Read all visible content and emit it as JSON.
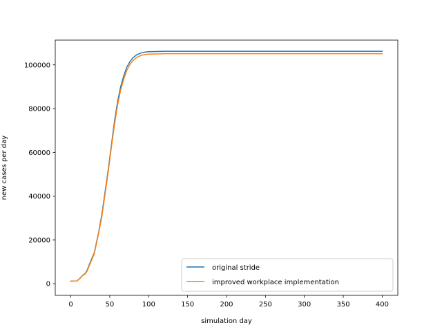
{
  "chart_data": {
    "type": "line",
    "title": "",
    "xlabel": "simulation day",
    "ylabel": "new cases per day",
    "xlim": [
      -20,
      420
    ],
    "ylim": [
      -5300,
      111300
    ],
    "xticks": [
      0,
      50,
      100,
      150,
      200,
      250,
      300,
      350,
      400
    ],
    "yticks": [
      0,
      20000,
      40000,
      60000,
      80000,
      100000
    ],
    "grid": false,
    "legend_position": "lower right",
    "series": [
      {
        "name": "original stride",
        "color": "#1f77b4",
        "x": [
          0,
          8,
          12,
          15,
          18,
          21,
          24,
          27,
          30,
          33,
          36,
          40,
          44,
          48,
          52,
          56,
          60,
          64,
          68,
          72,
          76,
          80,
          85,
          90,
          95,
          100,
          110,
          120,
          150,
          200,
          250,
          300,
          350,
          400
        ],
        "y": [
          1200,
          1300,
          2600,
          3800,
          4500,
          6200,
          9000,
          11500,
          14000,
          19000,
          24000,
          32000,
          42000,
          52000,
          63000,
          74000,
          83000,
          90000,
          95000,
          99000,
          101500,
          103300,
          104700,
          105400,
          105800,
          106000,
          106100,
          106200,
          106200,
          106200,
          106200,
          106200,
          106200,
          106200
        ]
      },
      {
        "name": "improved workplace implementation",
        "color": "#ff7f0e",
        "x": [
          0,
          8,
          12,
          15,
          18,
          21,
          24,
          27,
          30,
          33,
          36,
          40,
          44,
          48,
          52,
          56,
          60,
          64,
          68,
          72,
          76,
          80,
          85,
          90,
          95,
          100,
          110,
          120,
          150,
          200,
          250,
          300,
          350,
          400
        ],
        "y": [
          1200,
          1300,
          2500,
          3700,
          4300,
          5800,
          8500,
          11000,
          13500,
          18500,
          23500,
          31000,
          41000,
          51000,
          62000,
          72500,
          81500,
          88500,
          93500,
          97500,
          100200,
          102000,
          103500,
          104300,
          104700,
          104900,
          105000,
          105100,
          105100,
          105100,
          105100,
          105100,
          105100,
          105100
        ]
      }
    ]
  }
}
